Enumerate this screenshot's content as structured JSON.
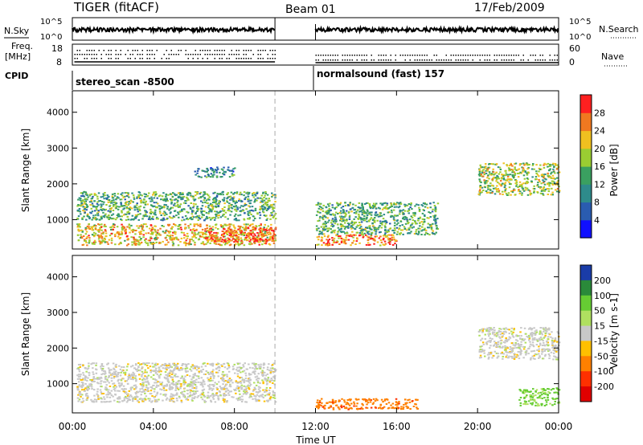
{
  "header": {
    "radar": "TIGER (fitACF)",
    "beam": "Beam 01",
    "date": "17/Feb/2009"
  },
  "noise_panel": {
    "left_label": "N.Sky",
    "right_label": "N.Search",
    "left_ticks": [
      "10^5",
      "10^0"
    ],
    "right_ticks": [
      "10^5",
      "10^0"
    ]
  },
  "freq_panel": {
    "label_line1": "Freq.",
    "label_line2": "[MHz]",
    "left_ticks": [
      "18",
      "8"
    ],
    "right_label": "Nave",
    "right_ticks": [
      "60",
      "0"
    ]
  },
  "cpid": {
    "label": "CPID",
    "segments": [
      "stereo_scan -8500",
      "normalsound (fast) 157"
    ]
  },
  "x_axis": {
    "label": "Time UT",
    "ticks": [
      "00:00",
      "04:00",
      "08:00",
      "12:00",
      "16:00",
      "20:00",
      "00:00"
    ],
    "range_hours": [
      0,
      24
    ]
  },
  "y_axis": {
    "label": "Slant Range [km]",
    "ticks": [
      "1000",
      "2000",
      "3000",
      "4000"
    ],
    "range_km": [
      180,
      4600
    ]
  },
  "colorbars": {
    "power": {
      "label": "Power [dB]",
      "ticks": [
        "4",
        "8",
        "12",
        "16",
        "20",
        "24",
        "28"
      ],
      "colors": [
        "#1010ff",
        "#2a5cb0",
        "#2e8b8b",
        "#3aa060",
        "#9acd32",
        "#f0c020",
        "#f07820",
        "#ff2020"
      ]
    },
    "velocity": {
      "label": "Velocity [m s-1]",
      "ticks": [
        "200",
        "100",
        "50",
        "15",
        "-15",
        "-50",
        "-100",
        "-200"
      ],
      "colors": [
        "#1a3ca8",
        "#2a8a3a",
        "#66cc33",
        "#b0e060",
        "#c8c8c8",
        "#ffc000",
        "#ff8000",
        "#ff3000",
        "#e00000"
      ]
    }
  },
  "chart_data": {
    "type": "heatmap",
    "title": "TIGER (fitACF) Beam 01 17/Feb/2009",
    "xlabel": "Time UT",
    "ylabel": "Slant Range [km]",
    "xlim": [
      0,
      24
    ],
    "ylim": [
      180,
      4600
    ],
    "data_gap_hours": [
      10.0,
      12.0
    ],
    "cpid_change_hours": 12.0,
    "power_regions": [
      {
        "t_start": 0.2,
        "t_end": 10.0,
        "r_start": 300,
        "r_end": 900,
        "power_db": 22
      },
      {
        "t_start": 6.5,
        "t_end": 10.0,
        "r_start": 400,
        "r_end": 800,
        "power_db": 28
      },
      {
        "t_start": 0.2,
        "t_end": 10.0,
        "r_start": 1000,
        "r_end": 1800,
        "power_db": 14
      },
      {
        "t_start": 6.0,
        "t_end": 8.0,
        "r_start": 2200,
        "r_end": 2500,
        "power_db": 10
      },
      {
        "t_start": 12.0,
        "t_end": 16.0,
        "r_start": 300,
        "r_end": 600,
        "power_db": 26
      },
      {
        "t_start": 12.0,
        "t_end": 18.0,
        "r_start": 600,
        "r_end": 1500,
        "power_db": 14
      },
      {
        "t_start": 20.0,
        "t_end": 24.0,
        "r_start": 1700,
        "r_end": 2600,
        "power_db": 18
      }
    ],
    "velocity_regions": [
      {
        "t_start": 0.2,
        "t_end": 10.0,
        "r_start": 500,
        "r_end": 1600,
        "velocity_ms": 0
      },
      {
        "t_start": 12.0,
        "t_end": 17.0,
        "r_start": 300,
        "r_end": 600,
        "velocity_ms": -60
      },
      {
        "t_start": 20.0,
        "t_end": 24.0,
        "r_start": 1700,
        "r_end": 2600,
        "velocity_ms": 0
      },
      {
        "t_start": 22.0,
        "t_end": 24.0,
        "r_start": 400,
        "r_end": 900,
        "velocity_ms": 40
      }
    ]
  }
}
